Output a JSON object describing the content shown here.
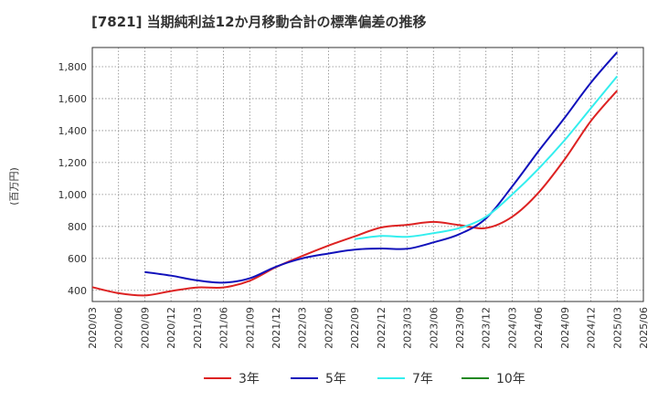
{
  "chart_data": {
    "type": "line",
    "title": "[7821]  当期純利益12か月移動合計の標準偏差の推移",
    "ylabel": "(百万円)",
    "xlabel": "",
    "ylim": [
      330,
      1920
    ],
    "yticks": [
      400,
      600,
      800,
      1000,
      1200,
      1400,
      1600,
      1800
    ],
    "ytick_labels": [
      "400",
      "600",
      "800",
      "1,000",
      "1,200",
      "1,400",
      "1,600",
      "1,800"
    ],
    "categories": [
      "2020/03",
      "2020/06",
      "2020/09",
      "2020/12",
      "2021/03",
      "2021/06",
      "2021/09",
      "2021/12",
      "2022/03",
      "2022/06",
      "2022/09",
      "2022/12",
      "2023/03",
      "2023/06",
      "2023/09",
      "2023/12",
      "2024/03",
      "2024/06",
      "2024/09",
      "2024/12",
      "2025/03",
      "2025/06"
    ],
    "grid": true,
    "legend_position": "bottom",
    "series": [
      {
        "name": "3年",
        "color": "#dd2222",
        "values": [
          420,
          382,
          368,
          395,
          418,
          418,
          460,
          545,
          615,
          680,
          738,
          793,
          810,
          828,
          808,
          790,
          860,
          1010,
          1220,
          1460,
          1650,
          null
        ]
      },
      {
        "name": "5年",
        "color": "#1111bb",
        "values": [
          null,
          null,
          515,
          492,
          462,
          448,
          475,
          548,
          600,
          630,
          655,
          662,
          660,
          700,
          752,
          850,
          1050,
          1270,
          1480,
          1700,
          1890,
          null
        ]
      },
      {
        "name": "7年",
        "color": "#33eeee",
        "values": [
          null,
          null,
          null,
          null,
          null,
          null,
          null,
          null,
          null,
          null,
          720,
          740,
          735,
          758,
          790,
          860,
          1000,
          1160,
          1340,
          1540,
          1740,
          null
        ]
      },
      {
        "name": "10年",
        "color": "#228822",
        "values": [
          null,
          null,
          null,
          null,
          null,
          null,
          null,
          null,
          null,
          null,
          null,
          null,
          null,
          null,
          null,
          null,
          null,
          null,
          null,
          null,
          null,
          null
        ]
      }
    ]
  }
}
